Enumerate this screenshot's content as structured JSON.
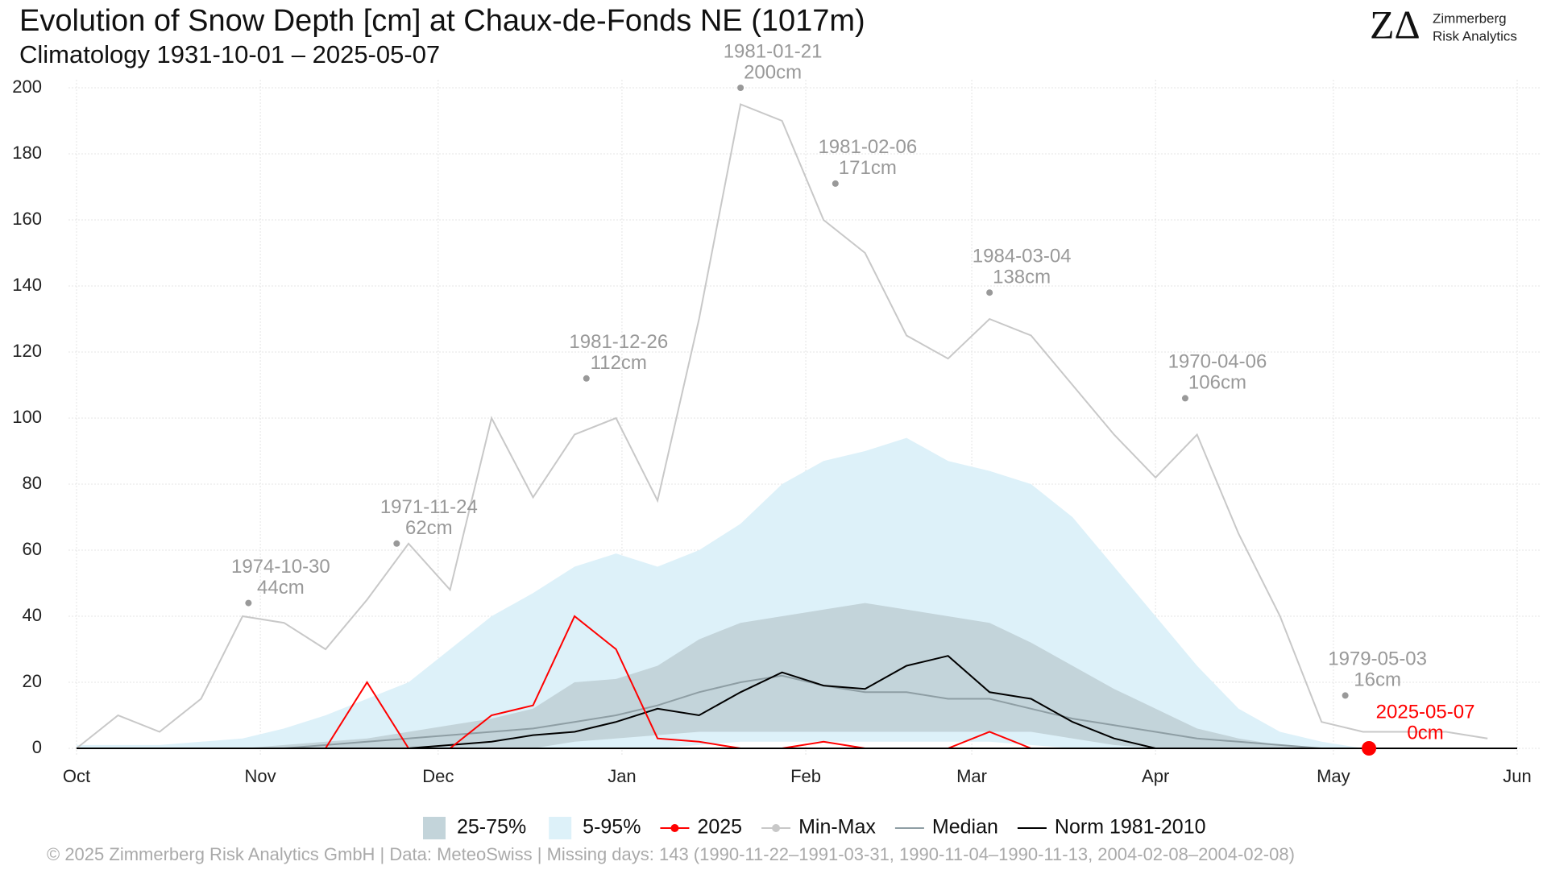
{
  "chart_data": {
    "type": "line",
    "title": "Evolution of Snow Depth [cm] at Chaux-de-Fonds  NE (1017m)",
    "subtitle": "Climatology 1931-10-01 – 2025-05-07",
    "logo": {
      "mark": "ZΔ",
      "line1": "Zimmerberg",
      "line2": "Risk Analytics"
    },
    "footer": "©  2025 Zimmerberg Risk Analytics GmbH | Data: MeteoSwiss | Missing days: 143 (1990-11-22–1991-03-31, 1990-11-04–1990-11-13, 2004-02-08–2004-02-08)",
    "x": [
      0,
      7,
      14,
      21,
      28,
      35,
      42,
      49,
      56,
      63,
      70,
      77,
      84,
      91,
      98,
      105,
      112,
      119,
      126,
      133,
      140,
      147,
      154,
      161,
      168,
      175,
      182,
      189,
      196,
      203,
      210,
      217,
      224,
      231,
      238
    ],
    "xlim": [
      0,
      243
    ],
    "xticks": [
      {
        "value": 0,
        "label": "Oct"
      },
      {
        "value": 31,
        "label": "Nov"
      },
      {
        "value": 61,
        "label": "Dec"
      },
      {
        "value": 92,
        "label": "Jan"
      },
      {
        "value": 123,
        "label": "Feb"
      },
      {
        "value": 151,
        "label": "Mar"
      },
      {
        "value": 182,
        "label": "Apr"
      },
      {
        "value": 212,
        "label": "May"
      },
      {
        "value": 243,
        "label": "Jun"
      }
    ],
    "ylim": [
      0,
      200
    ],
    "yticks": [
      0,
      20,
      40,
      60,
      80,
      100,
      120,
      140,
      160,
      180,
      200
    ],
    "grid": true,
    "series": [
      {
        "name": "25-75%",
        "type": "band",
        "color": "#c3d4da",
        "upper": [
          0,
          0,
          0,
          0,
          0,
          1,
          2,
          3,
          5,
          7,
          9,
          12,
          20,
          21,
          25,
          33,
          38,
          40,
          42,
          44,
          42,
          40,
          38,
          32,
          25,
          18,
          12,
          6,
          3,
          1,
          0,
          0,
          0,
          0,
          0
        ],
        "lower": [
          0,
          0,
          0,
          0,
          0,
          0,
          0,
          0,
          0,
          0,
          0,
          0,
          2,
          3,
          4,
          5,
          5,
          5,
          5,
          5,
          5,
          5,
          5,
          5,
          3,
          1,
          0,
          0,
          0,
          0,
          0,
          0,
          0,
          0,
          0
        ]
      },
      {
        "name": "5-95%",
        "type": "band",
        "color": "#ddf1f9",
        "upper": [
          1,
          1,
          1,
          2,
          3,
          6,
          10,
          15,
          20,
          30,
          40,
          47,
          55,
          59,
          55,
          60,
          68,
          80,
          87,
          90,
          94,
          87,
          84,
          80,
          70,
          55,
          40,
          25,
          12,
          5,
          2,
          0,
          0,
          0,
          0
        ],
        "lower": [
          0,
          0,
          0,
          0,
          0,
          0,
          0,
          0,
          0,
          0,
          0,
          0,
          0,
          0,
          0,
          1,
          2,
          2,
          2,
          2,
          2,
          2,
          2,
          1,
          0,
          0,
          0,
          0,
          0,
          0,
          0,
          0,
          0,
          0,
          0
        ]
      },
      {
        "name": "2025",
        "type": "line",
        "color": "#ff0000",
        "marker": true,
        "values": [
          0,
          0,
          0,
          0,
          0,
          0,
          0,
          20,
          0,
          0,
          10,
          13,
          40,
          30,
          3,
          2,
          0,
          0,
          2,
          0,
          0,
          0,
          5,
          0,
          0,
          0,
          0,
          0,
          0,
          0,
          0,
          0,
          null,
          null,
          null
        ]
      },
      {
        "name": "Min-Max",
        "type": "line",
        "color": "#c8c8c8",
        "marker": true,
        "values": [
          0,
          10,
          5,
          15,
          40,
          38,
          30,
          45,
          62,
          48,
          100,
          76,
          95,
          100,
          75,
          130,
          195,
          190,
          160,
          150,
          125,
          118,
          130,
          125,
          110,
          95,
          82,
          95,
          65,
          40,
          8,
          5,
          5,
          5,
          3
        ]
      },
      {
        "name": "Median",
        "type": "line",
        "color": "#8e9ea4",
        "values": [
          0,
          0,
          0,
          0,
          0,
          0,
          1,
          2,
          3,
          4,
          5,
          6,
          8,
          10,
          13,
          17,
          20,
          22,
          19,
          17,
          17,
          15,
          15,
          12,
          9,
          7,
          5,
          3,
          2,
          1,
          0,
          0,
          0,
          0,
          0
        ]
      },
      {
        "name": "Norm 1981-2010",
        "type": "line",
        "color": "#000000",
        "values": [
          0,
          0,
          0,
          0,
          0,
          0,
          0,
          0,
          0,
          1,
          2,
          4,
          5,
          8,
          12,
          10,
          17,
          23,
          19,
          18,
          25,
          28,
          17,
          15,
          8,
          3,
          0,
          0,
          0,
          0,
          0,
          0,
          0,
          0,
          0
        ]
      }
    ],
    "annotations": [
      {
        "x": 29,
        "value": 44,
        "date": "1974-10-30",
        "label": "44cm",
        "color": "#999999"
      },
      {
        "x": 54,
        "value": 62,
        "date": "1971-11-24",
        "label": "62cm",
        "color": "#999999"
      },
      {
        "x": 86,
        "value": 112,
        "date": "1981-12-26",
        "label": "112cm",
        "color": "#999999"
      },
      {
        "x": 112,
        "value": 200,
        "date": "1981-01-21",
        "label": "200cm",
        "color": "#999999"
      },
      {
        "x": 128,
        "value": 171,
        "date": "1981-02-06",
        "label": "171cm",
        "color": "#999999"
      },
      {
        "x": 154,
        "value": 138,
        "date": "1984-03-04",
        "label": "138cm",
        "color": "#999999"
      },
      {
        "x": 187,
        "value": 106,
        "date": "1970-04-06",
        "label": "106cm",
        "color": "#999999"
      },
      {
        "x": 214,
        "value": 16,
        "date": "1979-05-03",
        "label": "16cm",
        "color": "#999999"
      },
      {
        "x": 218,
        "value": 0,
        "date": "2025-05-07",
        "label": "0cm",
        "color": "#ff0000"
      }
    ]
  }
}
